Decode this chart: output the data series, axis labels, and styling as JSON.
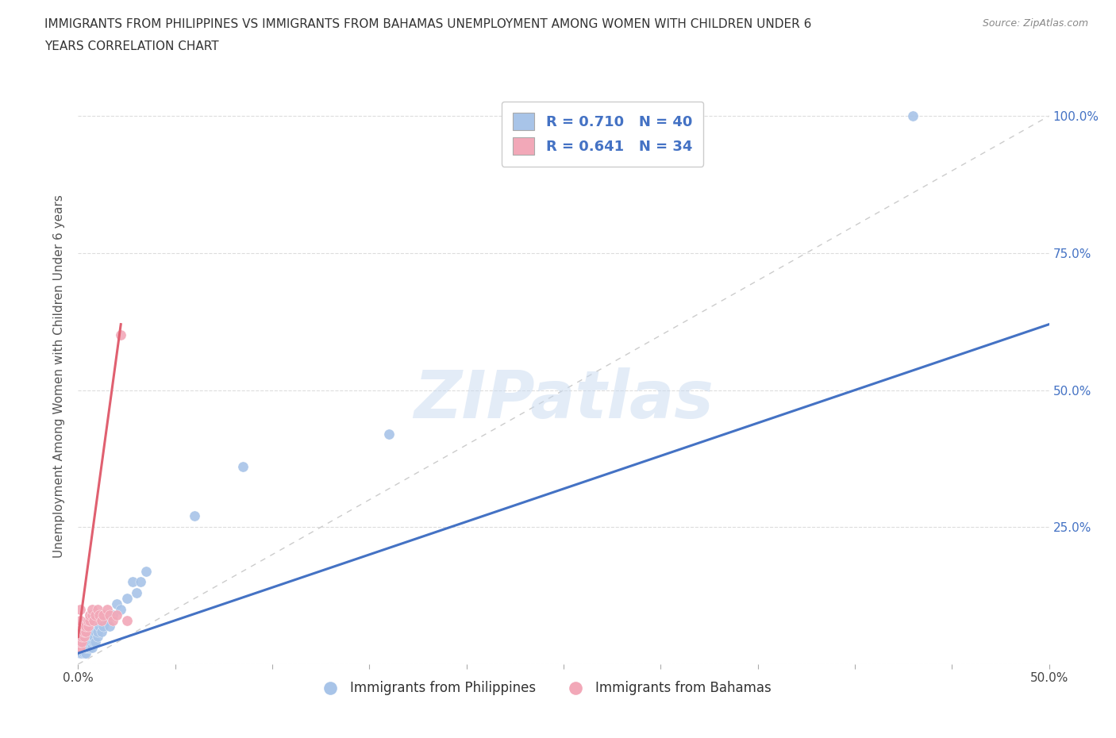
{
  "title_line1": "IMMIGRANTS FROM PHILIPPINES VS IMMIGRANTS FROM BAHAMAS UNEMPLOYMENT AMONG WOMEN WITH CHILDREN UNDER 6",
  "title_line2": "YEARS CORRELATION CHART",
  "source": "Source: ZipAtlas.com",
  "ylabel": "Unemployment Among Women with Children Under 6 years",
  "xlim": [
    0.0,
    0.5
  ],
  "ylim": [
    0.0,
    1.05
  ],
  "xticks": [
    0.0,
    0.1,
    0.2,
    0.3,
    0.4,
    0.5
  ],
  "xticklabels": [
    "0.0%",
    "",
    "",
    "",
    "",
    "50.0%"
  ],
  "yticks": [
    0.0,
    0.25,
    0.5,
    0.75,
    1.0
  ],
  "ytick_right_labels": [
    "",
    "25.0%",
    "50.0%",
    "75.0%",
    "100.0%"
  ],
  "R_blue": 0.71,
  "N_blue": 40,
  "R_pink": 0.641,
  "N_pink": 34,
  "blue_color": "#a8c4e8",
  "pink_color": "#f2a8b8",
  "blue_line_color": "#4472c4",
  "pink_line_color": "#e06070",
  "diag_line_color": "#cccccc",
  "watermark": "ZIPatlas",
  "blue_scatter_x": [
    0.001,
    0.001,
    0.002,
    0.002,
    0.002,
    0.003,
    0.003,
    0.003,
    0.004,
    0.004,
    0.004,
    0.005,
    0.005,
    0.006,
    0.006,
    0.007,
    0.007,
    0.008,
    0.008,
    0.009,
    0.009,
    0.01,
    0.01,
    0.011,
    0.012,
    0.013,
    0.015,
    0.016,
    0.018,
    0.02,
    0.022,
    0.025,
    0.028,
    0.03,
    0.032,
    0.035,
    0.06,
    0.085,
    0.16,
    0.43
  ],
  "blue_scatter_y": [
    0.02,
    0.03,
    0.02,
    0.03,
    0.04,
    0.02,
    0.03,
    0.04,
    0.02,
    0.03,
    0.04,
    0.03,
    0.04,
    0.03,
    0.04,
    0.03,
    0.05,
    0.04,
    0.05,
    0.04,
    0.06,
    0.05,
    0.06,
    0.07,
    0.06,
    0.07,
    0.08,
    0.07,
    0.09,
    0.11,
    0.1,
    0.12,
    0.15,
    0.13,
    0.15,
    0.17,
    0.27,
    0.36,
    0.42,
    1.0
  ],
  "pink_scatter_x": [
    0.0005,
    0.001,
    0.001,
    0.001,
    0.001,
    0.001,
    0.001,
    0.001,
    0.002,
    0.002,
    0.002,
    0.003,
    0.003,
    0.003,
    0.004,
    0.004,
    0.005,
    0.005,
    0.006,
    0.006,
    0.007,
    0.007,
    0.008,
    0.009,
    0.01,
    0.011,
    0.012,
    0.013,
    0.015,
    0.016,
    0.018,
    0.02,
    0.022,
    0.025
  ],
  "pink_scatter_y": [
    0.03,
    0.03,
    0.04,
    0.05,
    0.06,
    0.07,
    0.08,
    0.1,
    0.04,
    0.05,
    0.06,
    0.05,
    0.06,
    0.07,
    0.06,
    0.07,
    0.07,
    0.08,
    0.08,
    0.09,
    0.09,
    0.1,
    0.08,
    0.09,
    0.1,
    0.09,
    0.08,
    0.09,
    0.1,
    0.09,
    0.08,
    0.09,
    0.6,
    0.08
  ],
  "blue_line_x": [
    0.0,
    0.5
  ],
  "blue_line_y": [
    0.02,
    0.62
  ],
  "pink_line_x": [
    0.0,
    0.022
  ],
  "pink_line_y": [
    0.05,
    0.62
  ]
}
